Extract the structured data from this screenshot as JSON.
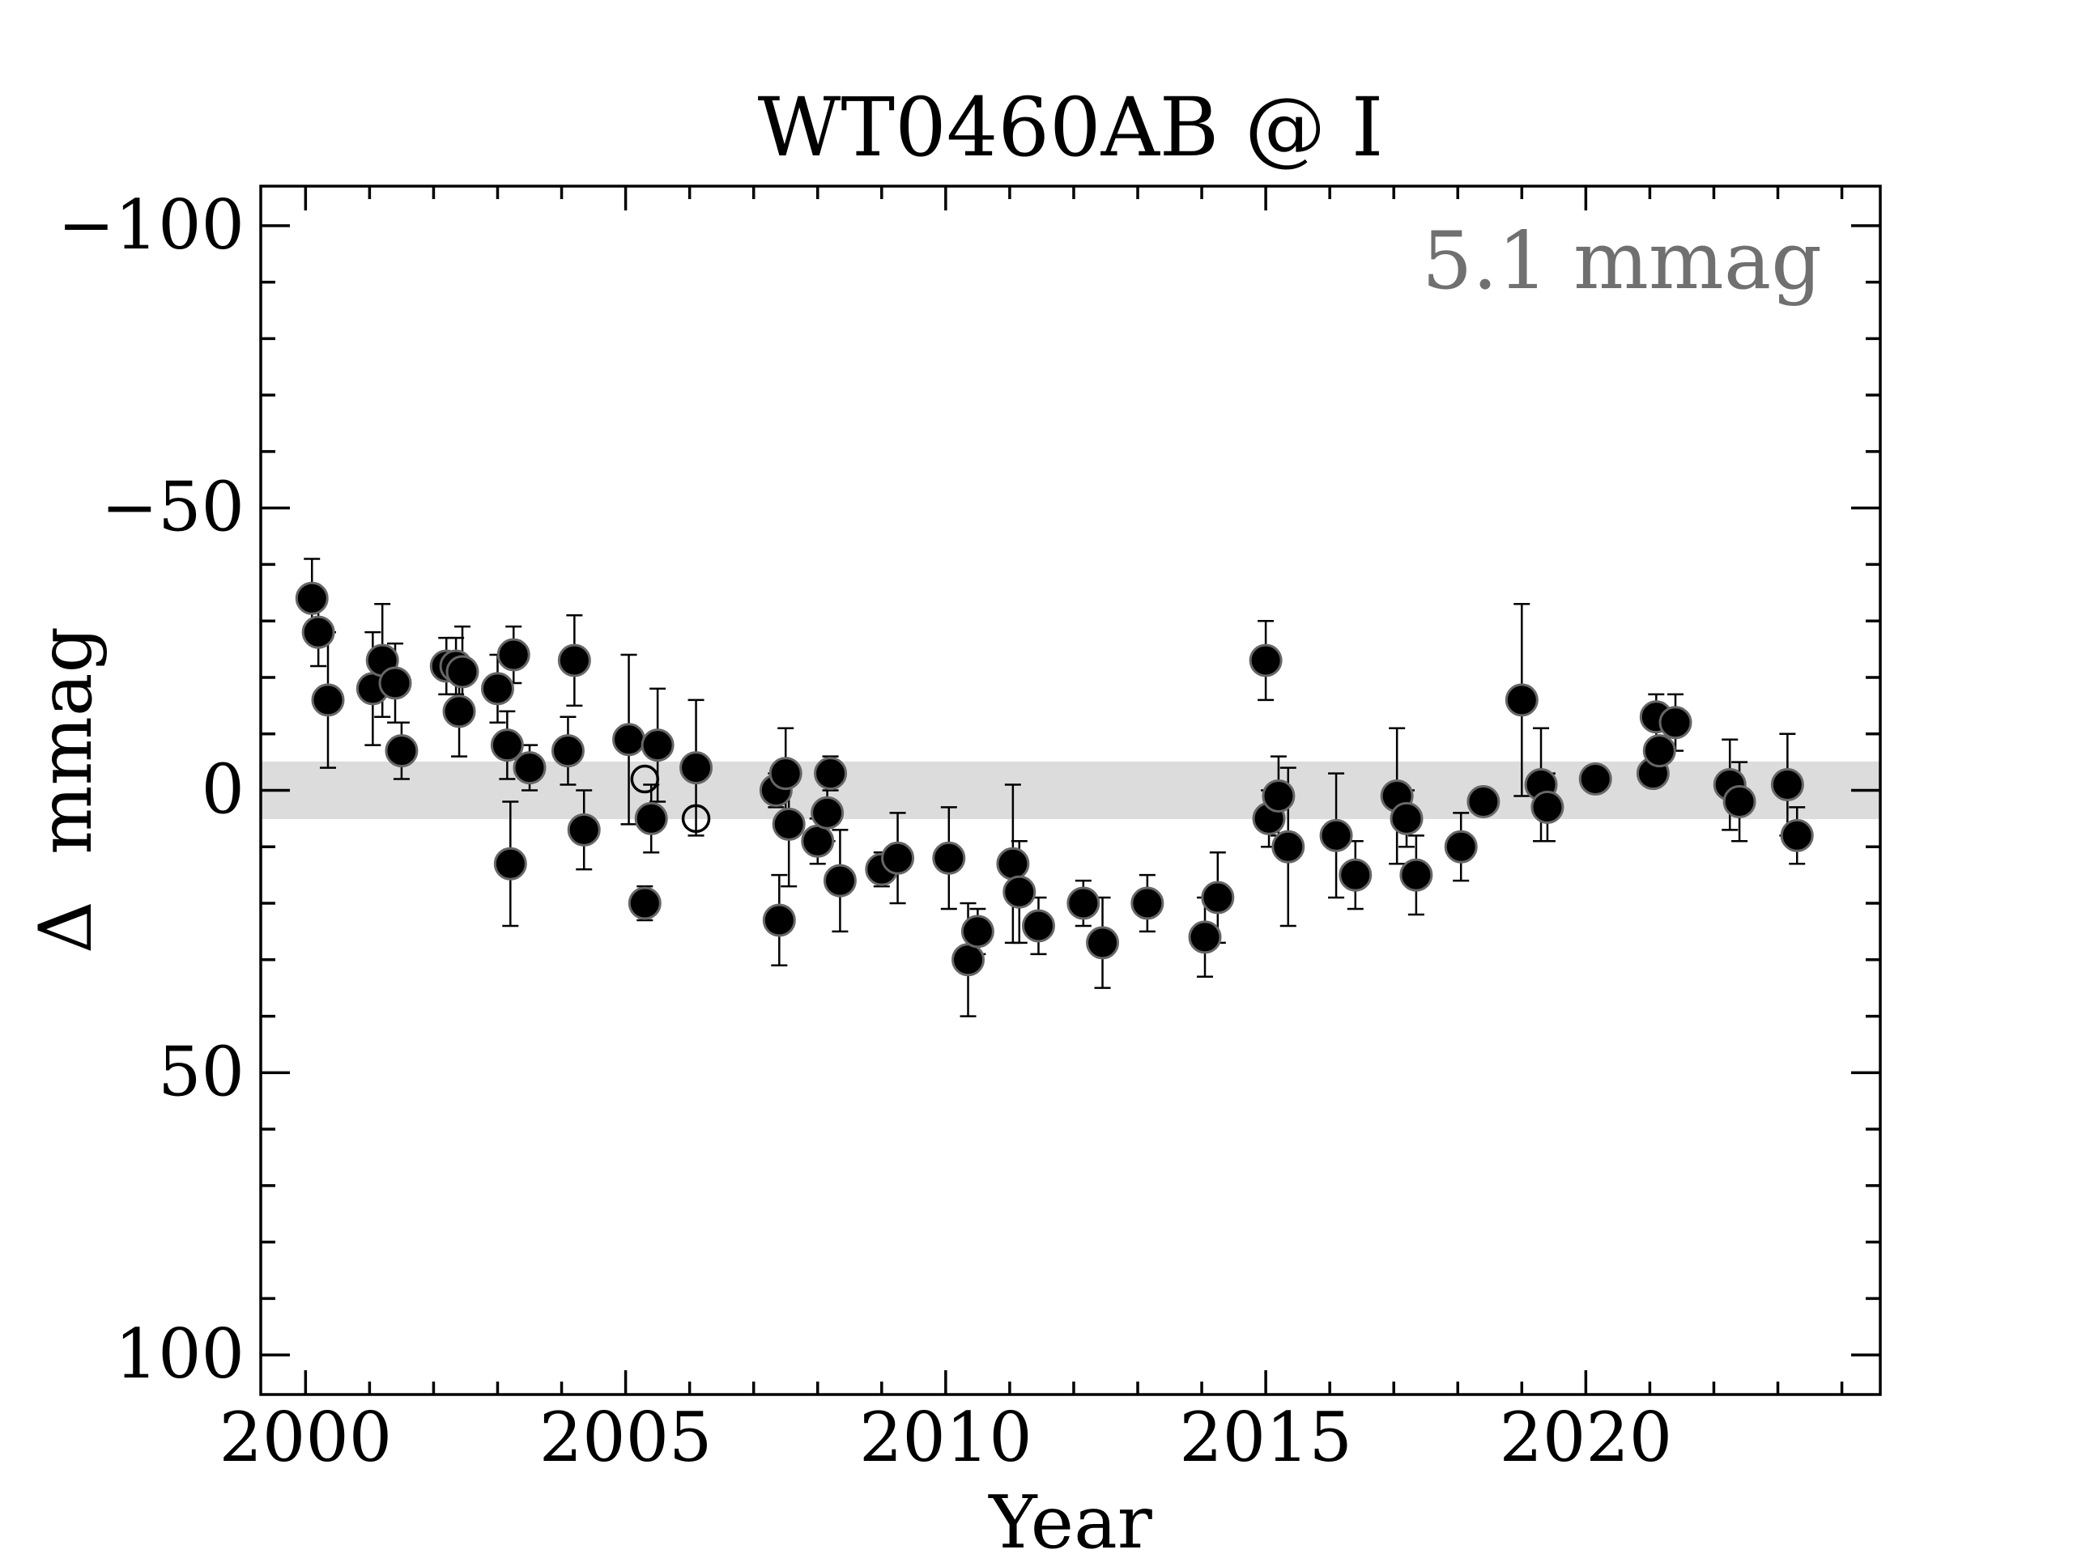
{
  "chart_data": {
    "type": "scatter",
    "title": "WT0460AB @ I",
    "xlabel": "Year",
    "ylabel": "Δ  mmag",
    "xlim": [
      1999.3,
      2024.6
    ],
    "ylim": [
      107,
      -107
    ],
    "y_axis_inverted": true,
    "x_ticks": [
      2000,
      2005,
      2010,
      2015,
      2020
    ],
    "x_tick_labels": [
      "2000",
      "2005",
      "2010",
      "2015",
      "2020"
    ],
    "y_ticks": [
      -100,
      -50,
      0,
      50,
      100
    ],
    "y_tick_labels": [
      "−100",
      "−50",
      "0",
      "50",
      "100"
    ],
    "annotation": "5.1 mmag",
    "band": {
      "lo": -5.1,
      "hi": 5.1,
      "color": "#dcdcdc"
    },
    "colors": {
      "filled_marker": "#000000",
      "marker_edge": "#666666",
      "errorbar": "#000000",
      "annotation": "#707070",
      "axis": "#000000"
    },
    "grid": false,
    "series": [
      {
        "marker": "filled-circle",
        "points": [
          {
            "x": 2000.1,
            "y": -34,
            "err": 7
          },
          {
            "x": 2000.2,
            "y": -28,
            "err": 6
          },
          {
            "x": 2000.35,
            "y": -16,
            "err": 12
          },
          {
            "x": 2001.05,
            "y": -18,
            "err": 10
          },
          {
            "x": 2001.2,
            "y": -23,
            "err": 10
          },
          {
            "x": 2001.4,
            "y": -19,
            "err": 7
          },
          {
            "x": 2001.5,
            "y": -7,
            "err": 5
          },
          {
            "x": 2002.2,
            "y": -22,
            "err": 5
          },
          {
            "x": 2002.35,
            "y": -22,
            "err": 5
          },
          {
            "x": 2002.4,
            "y": -14,
            "err": 8
          },
          {
            "x": 2002.45,
            "y": -21,
            "err": 8
          },
          {
            "x": 2003.0,
            "y": -18,
            "err": 6
          },
          {
            "x": 2003.15,
            "y": -8,
            "err": 6
          },
          {
            "x": 2003.2,
            "y": 13,
            "err": 11
          },
          {
            "x": 2003.25,
            "y": -24,
            "err": 5
          },
          {
            "x": 2003.5,
            "y": -4,
            "err": 4
          },
          {
            "x": 2004.1,
            "y": -7,
            "err": 6
          },
          {
            "x": 2004.2,
            "y": -23,
            "err": 8
          },
          {
            "x": 2004.35,
            "y": 7,
            "err": 7
          },
          {
            "x": 2005.05,
            "y": -9,
            "err": 15
          },
          {
            "x": 2005.3,
            "y": 20,
            "err": 3
          },
          {
            "x": 2005.4,
            "y": 5,
            "err": 6
          },
          {
            "x": 2005.5,
            "y": -8,
            "err": 10
          },
          {
            "x": 2006.1,
            "y": -4,
            "err": 12
          },
          {
            "x": 2007.35,
            "y": 0,
            "err": 3
          },
          {
            "x": 2007.4,
            "y": 23,
            "err": 8
          },
          {
            "x": 2007.5,
            "y": -3,
            "err": 8
          },
          {
            "x": 2007.55,
            "y": 6,
            "err": 11
          },
          {
            "x": 2008.0,
            "y": 9,
            "err": 4
          },
          {
            "x": 2008.15,
            "y": 4,
            "err": 5
          },
          {
            "x": 2008.2,
            "y": -3,
            "err": 3
          },
          {
            "x": 2008.35,
            "y": 16,
            "err": 9
          },
          {
            "x": 2009.0,
            "y": 14,
            "err": 3
          },
          {
            "x": 2009.25,
            "y": 12,
            "err": 8
          },
          {
            "x": 2010.05,
            "y": 12,
            "err": 9
          },
          {
            "x": 2010.35,
            "y": 30,
            "err": 10
          },
          {
            "x": 2010.5,
            "y": 25,
            "err": 4
          },
          {
            "x": 2011.05,
            "y": 13,
            "err": 14
          },
          {
            "x": 2011.15,
            "y": 18,
            "err": 9
          },
          {
            "x": 2011.45,
            "y": 24,
            "err": 5
          },
          {
            "x": 2012.15,
            "y": 20,
            "err": 4
          },
          {
            "x": 2012.45,
            "y": 27,
            "err": 8
          },
          {
            "x": 2013.15,
            "y": 20,
            "err": 5
          },
          {
            "x": 2014.05,
            "y": 26,
            "err": 7
          },
          {
            "x": 2014.25,
            "y": 19,
            "err": 8
          },
          {
            "x": 2015.0,
            "y": -23,
            "err": 7
          },
          {
            "x": 2015.05,
            "y": 5,
            "err": 5
          },
          {
            "x": 2015.2,
            "y": 1,
            "err": 7
          },
          {
            "x": 2015.35,
            "y": 10,
            "err": 14
          },
          {
            "x": 2016.1,
            "y": 8,
            "err": 11
          },
          {
            "x": 2016.4,
            "y": 15,
            "err": 6
          },
          {
            "x": 2017.05,
            "y": 1,
            "err": 12
          },
          {
            "x": 2017.2,
            "y": 5,
            "err": 5
          },
          {
            "x": 2017.35,
            "y": 15,
            "err": 7
          },
          {
            "x": 2018.05,
            "y": 10,
            "err": 6
          },
          {
            "x": 2018.4,
            "y": 2,
            "err": 1
          },
          {
            "x": 2019.0,
            "y": -16,
            "err": 17
          },
          {
            "x": 2019.3,
            "y": -1,
            "err": 10
          },
          {
            "x": 2019.4,
            "y": 3,
            "err": 6
          },
          {
            "x": 2020.15,
            "y": -2,
            "err": 2
          },
          {
            "x": 2021.05,
            "y": -3,
            "err": 2
          },
          {
            "x": 2021.1,
            "y": -13,
            "err": 4
          },
          {
            "x": 2021.15,
            "y": -7,
            "err": 2
          },
          {
            "x": 2021.4,
            "y": -12,
            "err": 5
          },
          {
            "x": 2022.25,
            "y": -1,
            "err": 8
          },
          {
            "x": 2022.4,
            "y": 2,
            "err": 7
          },
          {
            "x": 2023.15,
            "y": -1,
            "err": 9
          },
          {
            "x": 2023.3,
            "y": 8,
            "err": 5
          }
        ]
      },
      {
        "marker": "open-circle",
        "points": [
          {
            "x": 2005.3,
            "y": -2,
            "err": 0
          },
          {
            "x": 2006.1,
            "y": 5,
            "err": 0
          }
        ]
      }
    ]
  }
}
